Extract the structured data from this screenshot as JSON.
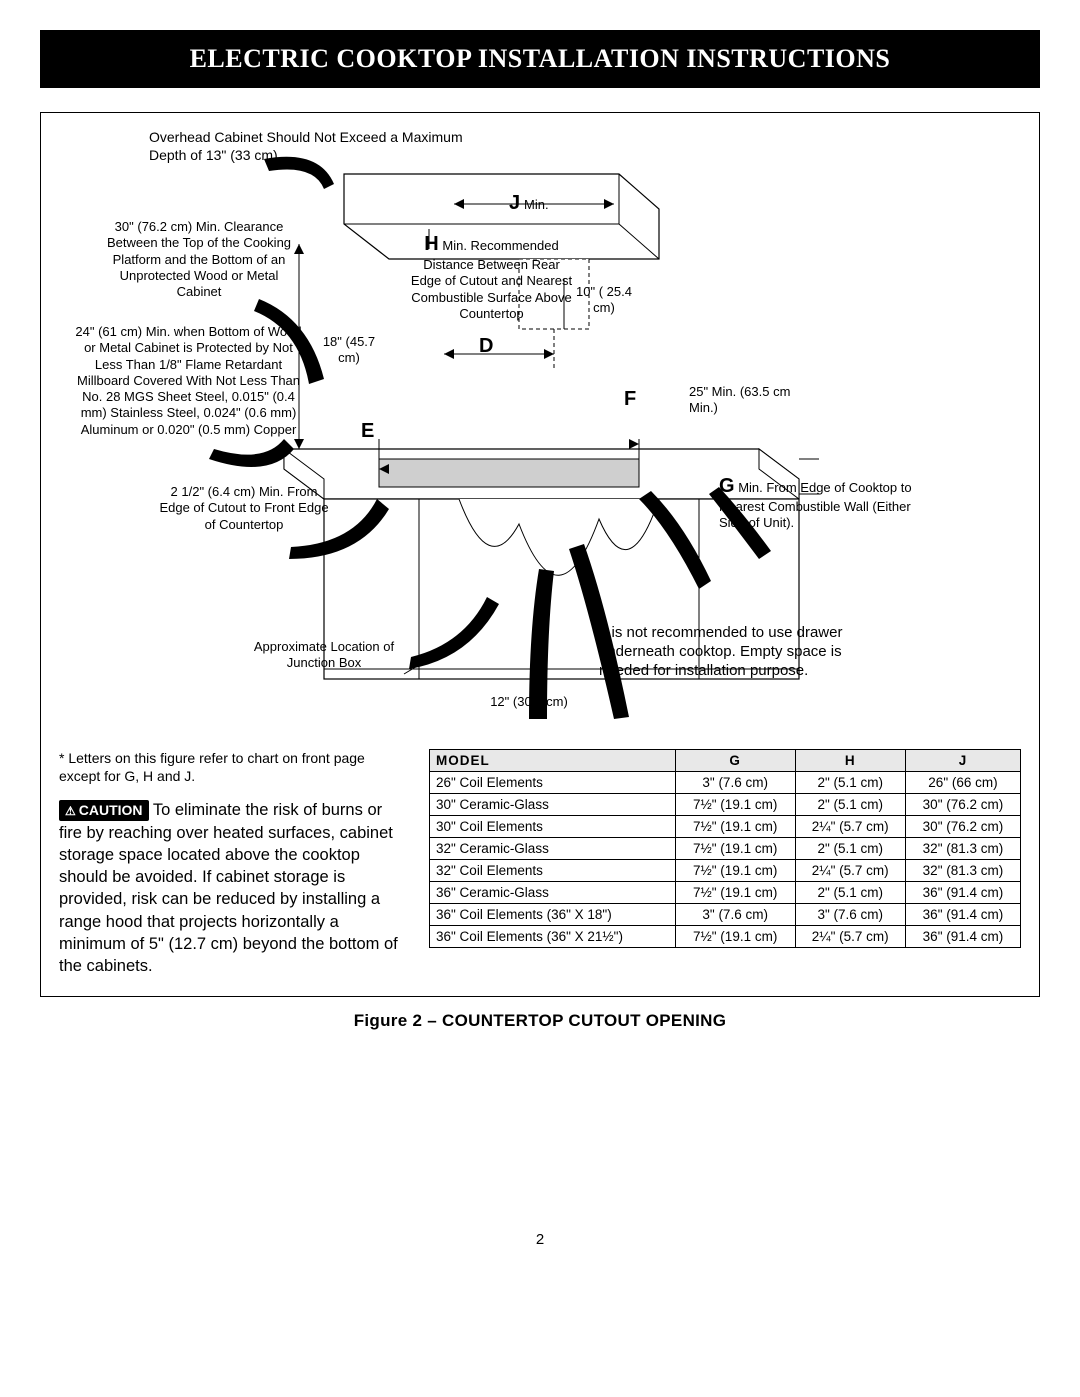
{
  "title": "ELECTRIC COOKTOP INSTALLATION INSTRUCTIONS",
  "callouts": {
    "overhead": "Overhead Cabinet Should Not Exceed a Maximum Depth of 13\" (33 cm)",
    "j_label": "J",
    "j_min": "Min.",
    "h_label": "H",
    "h_text": "Min. Recommended Distance Between Rear Edge of Cutout and Nearest Combustible Surface Above Countertop",
    "thirty_clearance": "30\" (76.2 cm) Min. Clearance Between the Top of the Cooking Platform and the Bottom of an Unprotected Wood or Metal Cabinet",
    "twentyfour": "24\" (61 cm) Min. when Bottom of Wood or Metal Cabinet is Protected by Not Less Than 1/8\" Flame Retardant Millboard Covered With Not Less Than No. 28 MGS Sheet Steel, 0.015\" (0.4 mm) Stainless Steel, 0.024\" (0.6 mm) Aluminum or 0.020\" (0.5 mm) Copper",
    "eighteen": "18\" (45.7 cm)",
    "ten": "10\" ( 25.4 cm)",
    "d_label": "D",
    "e_label": "E",
    "f_label": "F",
    "twentyfive": "25\" Min. (63.5 cm Min.)",
    "twohalf": "2 1/2\" (6.4 cm) Min. From Edge of Cutout to Front Edge of Countertop",
    "g_label": "G",
    "g_text": "Min. From Edge of Cooktop to Nearest Combustible Wall (Either Side of Unit).",
    "junction": "Approximate Location of Junction Box",
    "twelve": "12\" (30.5 cm)",
    "drawer_note": "It is not recommended to use drawer underneath cooktop. Empty space is needed for installation purpose."
  },
  "footnote": "* Letters on this figure refer to chart on front page except for G, H and J.",
  "caution_label": "CAUTION",
  "caution_body": "To eliminate the risk of burns or fire by reaching over heated surfaces, cabinet storage space located above the cooktop should be avoided. If cabinet storage is provided, risk can be reduced by installing a range hood that projects horizontally a minimum of 5\" (12.7 cm) beyond the bottom of the cabinets.",
  "table": {
    "headers": [
      "MODEL",
      "G",
      "H",
      "J"
    ],
    "rows": [
      [
        "26\"  Coil  Elements",
        "3\"  (7.6  cm)",
        "2\"  (5.1  cm)",
        "26\"  (66  cm)"
      ],
      [
        "30\"  Ceramic-Glass",
        "7½\"  (19.1  cm)",
        "2\"  (5.1  cm)",
        "30\"  (76.2  cm)"
      ],
      [
        "30\"  Coil  Elements",
        "7½\"  (19.1  cm)",
        "2¼\"  (5.7  cm)",
        "30\"  (76.2  cm)"
      ],
      [
        "32\"  Ceramic-Glass",
        "7½\"  (19.1  cm)",
        "2\"  (5.1  cm)",
        "32\"  (81.3  cm)"
      ],
      [
        "32\"  Coil  Elements",
        "7½\"  (19.1  cm)",
        "2¼\"  (5.7  cm)",
        "32\"  (81.3  cm)"
      ],
      [
        "36\"  Ceramic-Glass",
        "7½\"  (19.1  cm)",
        "2\"  (5.1  cm)",
        "36\"  (91.4  cm)"
      ],
      [
        "36\"  Coil  Elements (36\"  X  18\")",
        "3\"  (7.6  cm)",
        "3\"  (7.6  cm)",
        "36\"  (91.4  cm)"
      ],
      [
        "36\"  Coil  Elements (36\"  X  21½\")",
        "7½\"  (19.1  cm)",
        "2¼\"  (5.7  cm)",
        "36\"  (91.4  cm)"
      ]
    ]
  },
  "figure_caption": "Figure 2 – COUNTERTOP CUTOUT OPENING",
  "page_number": "2",
  "colors": {
    "title_bg": "#000000",
    "title_fg": "#ffffff",
    "border": "#000000",
    "table_header_bg": "#e8e8e8"
  }
}
